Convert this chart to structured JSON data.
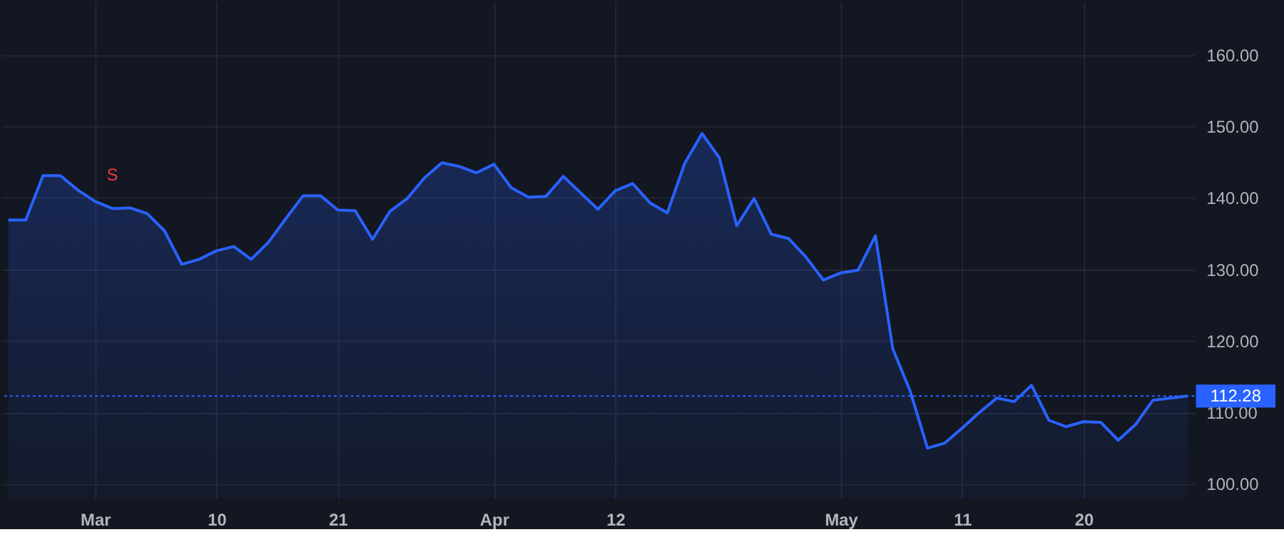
{
  "chart_data": {
    "type": "area",
    "categories": [
      null,
      null,
      null,
      null,
      null,
      "Mar",
      null,
      null,
      null,
      null,
      null,
      null,
      "10",
      null,
      null,
      null,
      null,
      null,
      null,
      "21",
      null,
      null,
      null,
      null,
      null,
      null,
      null,
      null,
      "Apr",
      null,
      null,
      null,
      null,
      null,
      null,
      "12",
      null,
      null,
      null,
      null,
      null,
      null,
      null,
      null,
      null,
      null,
      null,
      null,
      "May",
      null,
      null,
      null,
      null,
      null,
      null,
      "11",
      null,
      null,
      null,
      null,
      null,
      null,
      "20",
      null,
      null,
      null,
      null,
      null,
      null
    ],
    "series": [
      {
        "color": "#2962ff",
        "values": [
          136.9,
          136.9,
          143.1,
          143.1,
          141.1,
          139.5,
          138.5,
          138.6,
          137.8,
          135.4,
          130.7,
          131.4,
          132.6,
          133.2,
          131.4,
          133.8,
          137.1,
          140.3,
          140.3,
          138.3,
          138.2,
          134.2,
          138.1,
          139.9,
          142.8,
          144.9,
          144.4,
          143.5,
          144.7,
          141.4,
          140.1,
          140.2,
          143.0,
          140.7,
          138.4,
          141.0,
          142.0,
          139.3,
          137.9,
          144.8,
          149.0,
          145.6,
          136.1,
          139.9,
          134.9,
          134.3,
          131.7,
          128.5,
          129.5,
          129.9,
          134.7,
          118.9,
          113.0,
          105.0,
          105.7,
          107.8,
          110.0,
          112.0,
          111.5,
          113.8,
          108.9,
          108.0,
          108.7,
          108.6,
          106.1,
          108.3,
          111.7,
          112.0,
          112.28
        ]
      }
    ],
    "ylim": [
      98,
      167.5
    ],
    "yticks": [
      {
        "value": 100,
        "label": "100.00"
      },
      {
        "value": 110,
        "label": "110.00"
      },
      {
        "value": 120,
        "label": "120.00"
      },
      {
        "value": 130,
        "label": "130.00"
      },
      {
        "value": 140,
        "label": "140.00"
      },
      {
        "value": 150,
        "label": "150.00"
      },
      {
        "value": 160,
        "label": "160.00"
      }
    ],
    "ref_lines": [
      {
        "axis": "y",
        "value": 112.28,
        "label": "112.28",
        "color": "#2962ff",
        "line_style": "dotted"
      }
    ],
    "annotations": [
      {
        "text": "S",
        "y": 138.5
      }
    ],
    "grid": true,
    "marker": "none",
    "line_style": "solid"
  }
}
